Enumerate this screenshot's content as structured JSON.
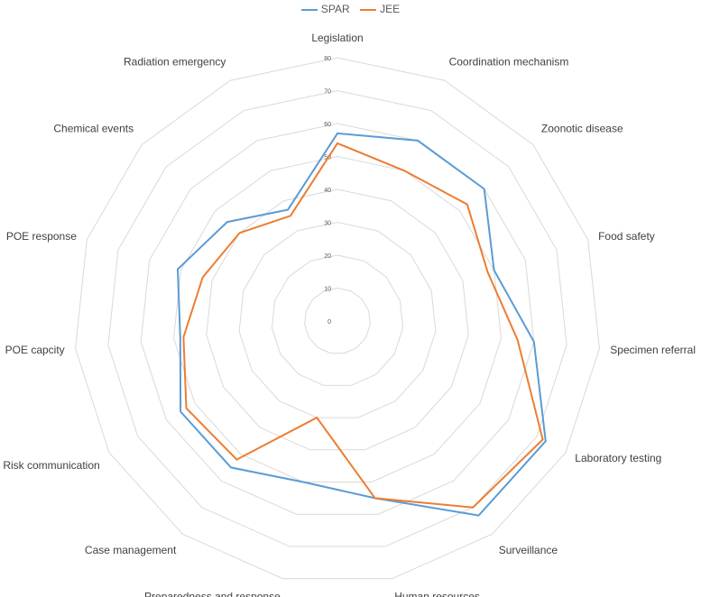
{
  "chart_data": {
    "type": "radar",
    "categories": [
      "Legislation",
      "Coordination mechanism",
      "Zoonotic disease",
      "Food safety",
      "Specimen referral",
      "Laboratory testing",
      "Surveillance",
      "Human resources",
      "Preparedness and response",
      "Case management",
      "Risk communication",
      "POE capcity",
      "POE response",
      "Chemical events",
      "Radiation emergency"
    ],
    "ticks": [
      0,
      10,
      20,
      30,
      40,
      50,
      60,
      70,
      80
    ],
    "rlim": [
      0,
      80
    ],
    "grid": true,
    "legend_position": "top",
    "series": [
      {
        "name": "SPAR",
        "color": "#5B9BD5",
        "values": [
          57,
          60,
          60,
          50,
          60,
          73,
          73,
          55,
          50,
          55,
          55,
          48,
          51,
          45,
          37
        ]
      },
      {
        "name": "JEE",
        "color": "#ED7D31",
        "values": [
          54,
          50,
          53,
          48,
          55,
          72,
          70,
          55,
          30,
          52,
          53,
          47,
          43,
          40,
          35
        ]
      }
    ]
  }
}
